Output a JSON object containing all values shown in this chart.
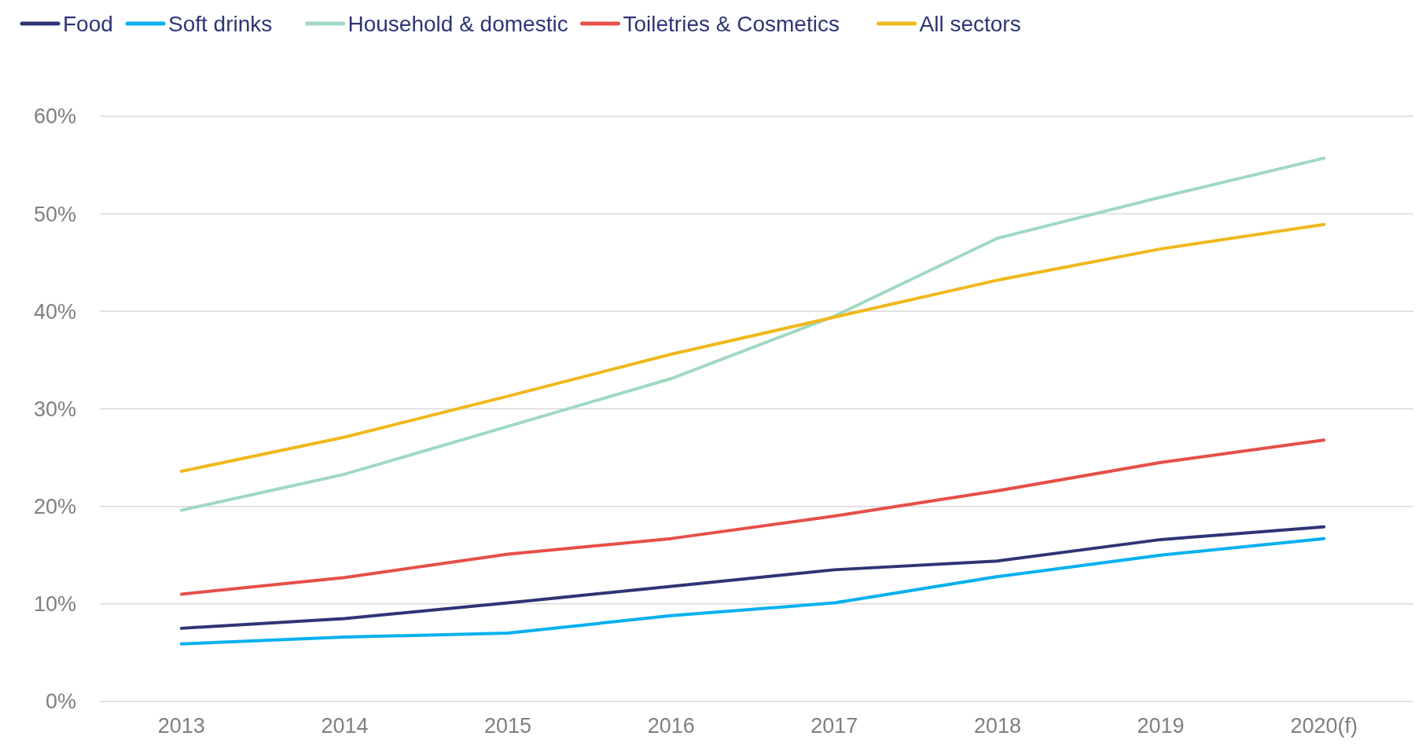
{
  "chart_data": {
    "type": "line",
    "categories": [
      "2013",
      "2014",
      "2015",
      "2016",
      "2017",
      "2018",
      "2019",
      "2020(f)"
    ],
    "series": [
      {
        "name": "Food",
        "color": "#2e3575",
        "values": [
          7.5,
          8.5,
          10.1,
          11.8,
          13.5,
          14.4,
          16.6,
          17.9
        ]
      },
      {
        "name": "Soft drinks",
        "color": "#00b0f0",
        "values": [
          5.9,
          6.6,
          7.0,
          8.8,
          10.1,
          12.8,
          15.0,
          16.7
        ]
      },
      {
        "name": "Household & domestic",
        "color": "#9fd9c0",
        "values": [
          19.6,
          23.3,
          28.2,
          33.1,
          39.5,
          47.5,
          51.7,
          55.7
        ]
      },
      {
        "name": "Toiletries & Cosmetics",
        "color": "#e64f48",
        "values": [
          11.0,
          12.7,
          15.1,
          16.7,
          19.0,
          21.6,
          24.5,
          26.8
        ]
      },
      {
        "name": "All sectors",
        "color": "#f0b81c",
        "values": [
          23.6,
          27.1,
          31.3,
          35.6,
          39.4,
          43.2,
          46.4,
          48.9
        ]
      }
    ],
    "ylim": [
      0,
      60
    ],
    "yticks": [
      {
        "value": 0,
        "label": "0%"
      },
      {
        "value": 10,
        "label": "10%"
      },
      {
        "value": 20,
        "label": "20%"
      },
      {
        "value": 30,
        "label": "30%"
      },
      {
        "value": 40,
        "label": "40%"
      },
      {
        "value": 50,
        "label": "50%"
      },
      {
        "value": 60,
        "label": "60%"
      }
    ],
    "grid": "y",
    "legend": "top",
    "marker": "none",
    "line_style": "solid"
  }
}
